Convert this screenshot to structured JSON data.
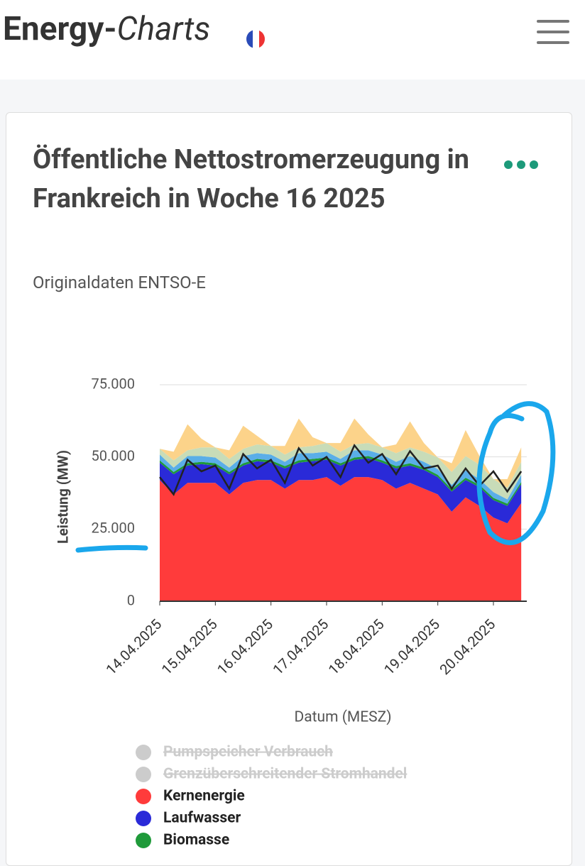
{
  "header": {
    "brand_left": "Energy-",
    "brand_right": "Charts"
  },
  "chart_data": {
    "type": "area",
    "title": "Öffentliche Nettostromerzeugung in Frankreich in Woche 16 2025",
    "subtitle": "Originaldaten ENTSO-E",
    "y_label": "Leistung (MW)",
    "x_label": "Datum (MESZ)",
    "x": [
      0,
      0.25,
      0.5,
      0.75,
      1,
      1.25,
      1.5,
      1.75,
      2,
      2.25,
      2.5,
      2.75,
      3,
      3.25,
      3.5,
      3.75,
      4,
      4.25,
      4.5,
      4.75,
      5,
      5.25,
      5.5,
      5.75,
      6,
      6.25,
      6.5
    ],
    "xlim": [
      0,
      6.6
    ],
    "xticks": [
      {
        "value": 0,
        "label": "14.04.2025"
      },
      {
        "value": 1,
        "label": "15.04.2025"
      },
      {
        "value": 2,
        "label": "16.04.2025"
      },
      {
        "value": 3,
        "label": "17.04.2025"
      },
      {
        "value": 4,
        "label": "18.04.2025"
      },
      {
        "value": 5,
        "label": "19.04.2025"
      },
      {
        "value": 6,
        "label": "20.04.2025"
      }
    ],
    "ylim": [
      0,
      75000
    ],
    "yticks": [
      0,
      {
        "value": 25000,
        "label": "25.000"
      },
      {
        "value": 50000,
        "label": "50.000"
      },
      {
        "value": 75000,
        "label": "75.000"
      }
    ],
    "grid": true,
    "series": [
      {
        "name": "Kernenergie",
        "color": "#ff3b3b",
        "values": [
          42000,
          37000,
          41000,
          41000,
          41000,
          37000,
          41000,
          42000,
          42000,
          39000,
          42000,
          42000,
          43000,
          40000,
          43000,
          43000,
          42000,
          39000,
          41000,
          39000,
          37000,
          31000,
          36000,
          33000,
          29000,
          27000,
          34000
        ]
      },
      {
        "name": "Laufwasser",
        "color": "#2a2ad8",
        "values": [
          6000,
          7000,
          6000,
          6500,
          6000,
          7000,
          6000,
          6500,
          6000,
          7000,
          6000,
          6500,
          6000,
          7000,
          6000,
          6500,
          6000,
          7000,
          6000,
          6500,
          6000,
          7000,
          6000,
          6500,
          6000,
          6000,
          6500
        ]
      },
      {
        "name": "Biomasse",
        "color": "#1f9a3a",
        "values": [
          800,
          800,
          800,
          800,
          800,
          800,
          800,
          800,
          800,
          800,
          800,
          800,
          800,
          800,
          800,
          800,
          800,
          800,
          800,
          800,
          800,
          800,
          800,
          800,
          800,
          800,
          800
        ]
      },
      {
        "color": "#5aaee8",
        "values": [
          2000,
          1500,
          2500,
          2000,
          2000,
          1500,
          2500,
          2000,
          2000,
          1500,
          2500,
          2000,
          2000,
          1500,
          2500,
          2000,
          2000,
          1500,
          2500,
          2000,
          2000,
          1500,
          2500,
          2000,
          2000,
          1500,
          2500
        ]
      },
      {
        "color": "#c8dcb8",
        "values": [
          2000,
          2500,
          2000,
          3000,
          3500,
          3000,
          2500,
          3000,
          3000,
          2500,
          2000,
          2500,
          3000,
          2500,
          2000,
          2500,
          2500,
          3000,
          3000,
          3500,
          4000,
          4500,
          5000,
          5000,
          4500,
          4000,
          4500
        ]
      },
      {
        "color": "#fcd38a",
        "values": [
          0,
          3000,
          9000,
          3000,
          0,
          3000,
          8000,
          3000,
          0,
          3000,
          10000,
          3000,
          0,
          3000,
          9000,
          3000,
          0,
          3000,
          9000,
          3000,
          0,
          3000,
          9000,
          3000,
          0,
          3000,
          5000
        ]
      }
    ],
    "hidden_series": [
      {
        "name": "Pumpspeicher Verbrauch",
        "color": "#cccccc"
      },
      {
        "name": "Grenzüberschreitender Stromhandel",
        "color": "#cccccc"
      }
    ],
    "load": {
      "color": "#222222",
      "values": [
        43000,
        37000,
        49000,
        45000,
        47000,
        39000,
        51000,
        46000,
        49000,
        41000,
        53000,
        47000,
        50000,
        43000,
        54000,
        48000,
        51000,
        44000,
        52000,
        46000,
        47000,
        39000,
        46000,
        40000,
        45000,
        38000,
        45000
      ]
    }
  }
}
